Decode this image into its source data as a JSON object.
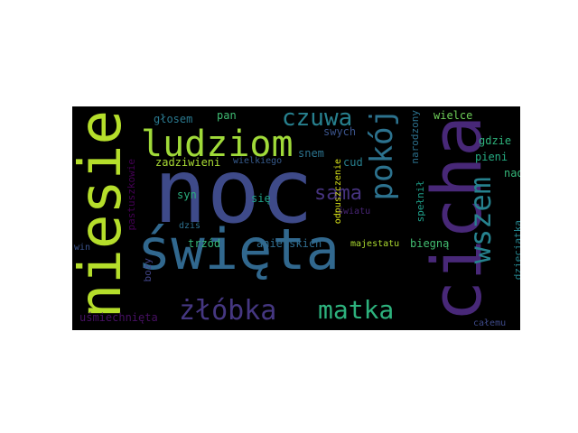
{
  "words": [
    {
      "text": "noc",
      "color": "#3e4a89"
    },
    {
      "text": "święta",
      "color": "#31688e"
    },
    {
      "text": "cicha",
      "color": "#482878"
    },
    {
      "text": "niesie",
      "color": "#b5de2b"
    },
    {
      "text": "ludziom",
      "color": "#a0da39"
    },
    {
      "text": "pokój",
      "color": "#2c728e"
    },
    {
      "text": "wszem",
      "color": "#26828e"
    },
    {
      "text": "czuwa",
      "color": "#27808e"
    },
    {
      "text": "żłóbka",
      "color": "#453781"
    },
    {
      "text": "matka",
      "color": "#2db27d"
    },
    {
      "text": "sama",
      "color": "#46337e"
    },
    {
      "text": "głosem",
      "color": "#2a788e"
    },
    {
      "text": "pan",
      "color": "#3fbc73"
    },
    {
      "text": "wielce",
      "color": "#6ece58"
    },
    {
      "text": "gdzie",
      "color": "#2eb37c"
    },
    {
      "text": "pieni",
      "color": "#25ac82"
    },
    {
      "text": "nad",
      "color": "#35b779"
    },
    {
      "text": "swych",
      "color": "#3a538b"
    },
    {
      "text": "cud",
      "color": "#277f8e"
    },
    {
      "text": "snem",
      "color": "#2c738e"
    },
    {
      "text": "zadziwieni",
      "color": "#a8db34"
    },
    {
      "text": "wielkiego",
      "color": "#375b8d"
    },
    {
      "text": "narodzony",
      "color": "#2c718e"
    },
    {
      "text": "syn",
      "color": "#2ab07f"
    },
    {
      "text": "się",
      "color": "#1fa188"
    },
    {
      "text": "spełnił",
      "color": "#1f9e89"
    },
    {
      "text": "odpuszczenie",
      "color": "#d8e219"
    },
    {
      "text": "światu",
      "color": "#482576"
    },
    {
      "text": "dziś",
      "color": "#2d708e"
    },
    {
      "text": "pastuszkowie",
      "color": "#440154"
    },
    {
      "text": "trzód",
      "color": "#35b779"
    },
    {
      "text": "anielskich",
      "color": "#2f6c8e"
    },
    {
      "text": "majestatu",
      "color": "#addc30"
    },
    {
      "text": "biegną",
      "color": "#42be71"
    },
    {
      "text": "dzieciątka",
      "color": "#25858e"
    },
    {
      "text": "win",
      "color": "#3b528b"
    },
    {
      "text": "boży",
      "color": "#414487"
    },
    {
      "text": "uśmiechnięta",
      "color": "#471063"
    },
    {
      "text": "całemu",
      "color": "#3e4a89"
    }
  ]
}
